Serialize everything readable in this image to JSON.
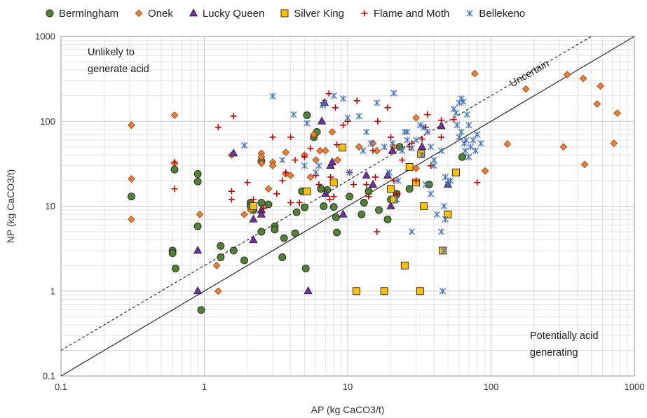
{
  "chart_data": {
    "type": "scatter",
    "xlabel": "AP (kg CaCO3/t)",
    "ylabel": "NP (kg CaCO3/t)",
    "xscale": "log",
    "yscale": "log",
    "xlim": [
      0.1,
      1000
    ],
    "ylim": [
      0.1,
      1000
    ],
    "x_ticks": [
      "0.1",
      "1",
      "10",
      "100",
      "1000"
    ],
    "y_ticks": [
      "0.1",
      "1",
      "10",
      "100",
      "1000"
    ],
    "grid": true,
    "legend_position": "top",
    "reference_lines": [
      {
        "label": "",
        "style": "solid",
        "ratio": 1
      },
      {
        "label": "Uncertain",
        "style": "dashed",
        "ratio": 2
      }
    ],
    "annotations": {
      "top_left": [
        "Unlikely to",
        "generate acid"
      ],
      "bottom_right": [
        "Potentially acid",
        "generating"
      ],
      "line_label": "Uncertain"
    },
    "series": [
      {
        "name": "Bermingham",
        "marker": "circle",
        "color": "#548235",
        "points": [
          [
            0.31,
            13
          ],
          [
            0.6,
            3
          ],
          [
            0.6,
            2.8
          ],
          [
            0.62,
            27
          ],
          [
            0.63,
            1.85
          ],
          [
            0.9,
            24
          ],
          [
            0.9,
            19.5
          ],
          [
            0.9,
            5.8
          ],
          [
            0.95,
            0.6
          ],
          [
            1.3,
            3.4
          ],
          [
            1.3,
            2.5
          ],
          [
            1.6,
            3
          ],
          [
            1.9,
            2.3
          ],
          [
            2.1,
            11
          ],
          [
            2.1,
            10
          ],
          [
            2.2,
            9
          ],
          [
            2.5,
            11
          ],
          [
            2.5,
            5
          ],
          [
            2.5,
            34
          ],
          [
            2.8,
            10.5
          ],
          [
            3.1,
            5.8
          ],
          [
            3.1,
            5.3
          ],
          [
            3.5,
            2.5
          ],
          [
            3.6,
            4.2
          ],
          [
            4.3,
            4.8
          ],
          [
            4.4,
            8.5
          ],
          [
            4.8,
            15
          ],
          [
            5,
            9.7
          ],
          [
            5.1,
            1.85
          ],
          [
            5.2,
            118
          ],
          [
            5.8,
            65
          ],
          [
            6.1,
            75
          ],
          [
            6.5,
            16
          ],
          [
            6.8,
            10
          ],
          [
            7.2,
            15.5
          ],
          [
            8,
            9.8
          ],
          [
            8.3,
            7.4
          ],
          [
            8.4,
            4.9
          ],
          [
            10.3,
            13
          ],
          [
            12.5,
            8
          ],
          [
            13,
            11
          ],
          [
            14,
            15
          ],
          [
            16.5,
            9
          ],
          [
            19,
            7
          ],
          [
            20,
            12
          ],
          [
            22,
            14
          ],
          [
            23,
            50
          ],
          [
            27,
            16
          ],
          [
            37,
            18
          ],
          [
            63,
            38
          ]
        ]
      },
      {
        "name": "Onek",
        "marker": "diamond",
        "color": "#ED7D31",
        "points": [
          [
            0.31,
            90
          ],
          [
            0.31,
            21
          ],
          [
            0.31,
            7
          ],
          [
            0.62,
            118
          ],
          [
            0.62,
            32
          ],
          [
            0.93,
            8
          ],
          [
            1.22,
            2
          ],
          [
            1.25,
            1
          ],
          [
            1.55,
            40
          ],
          [
            1.9,
            8
          ],
          [
            2.1,
            9
          ],
          [
            2.5,
            42
          ],
          [
            2.5,
            38
          ],
          [
            2.5,
            32
          ],
          [
            2.8,
            16
          ],
          [
            3,
            33
          ],
          [
            3,
            30
          ],
          [
            3.7,
            43
          ],
          [
            3.7,
            24
          ],
          [
            4,
            23
          ],
          [
            5,
            40
          ],
          [
            5.5,
            22
          ],
          [
            5.8,
            70
          ],
          [
            6,
            35
          ],
          [
            6.4,
            45
          ],
          [
            7,
            45
          ],
          [
            7.8,
            75
          ],
          [
            8.5,
            35
          ],
          [
            12,
            50
          ],
          [
            15,
            55
          ],
          [
            16,
            45
          ],
          [
            21,
            50
          ],
          [
            30,
            110
          ],
          [
            30,
            28
          ],
          [
            91,
            26
          ],
          [
            130,
            54
          ],
          [
            175,
            240
          ],
          [
            320,
            50
          ],
          [
            340,
            355
          ],
          [
            440,
            320
          ],
          [
            450,
            31
          ],
          [
            550,
            160
          ],
          [
            580,
            260
          ],
          [
            720,
            55
          ],
          [
            760,
            125
          ],
          [
            77,
            365
          ]
        ]
      },
      {
        "name": "Lucky Queen",
        "marker": "triangle",
        "color": "#7030A0",
        "points": [
          [
            0.9,
            3
          ],
          [
            0.9,
            1
          ],
          [
            1.6,
            42
          ],
          [
            2.2,
            7
          ],
          [
            2.2,
            4
          ],
          [
            2.5,
            9
          ],
          [
            2.5,
            8
          ],
          [
            5.3,
            1
          ],
          [
            6.6,
            100
          ],
          [
            6.9,
            165
          ],
          [
            7,
            14
          ],
          [
            7.6,
            30
          ],
          [
            7.8,
            33
          ],
          [
            9.3,
            8
          ],
          [
            13.5,
            23
          ],
          [
            15,
            18
          ],
          [
            19,
            23
          ],
          [
            20,
            10
          ],
          [
            20.5,
            45
          ],
          [
            33,
            50
          ],
          [
            45,
            88
          ],
          [
            50,
            18
          ]
        ]
      },
      {
        "name": "Silver King",
        "marker": "square",
        "color": "#FFC000",
        "points": [
          [
            2.2,
            10
          ],
          [
            5.2,
            15
          ],
          [
            8,
            19
          ],
          [
            9.2,
            49
          ],
          [
            11.5,
            1
          ],
          [
            18,
            1
          ],
          [
            20,
            16
          ],
          [
            21,
            12
          ],
          [
            25,
            2
          ],
          [
            27,
            29
          ],
          [
            30,
            19
          ],
          [
            32,
            1
          ],
          [
            32.5,
            41
          ],
          [
            34,
            10
          ],
          [
            46,
            3
          ],
          [
            50,
            8
          ],
          [
            57,
            25
          ]
        ]
      },
      {
        "name": "Flame and Moth",
        "marker": "plus",
        "color": "#C00000",
        "points": [
          [
            0.62,
            33
          ],
          [
            0.62,
            16
          ],
          [
            1.25,
            85
          ],
          [
            1.6,
            115
          ],
          [
            1.55,
            15
          ],
          [
            1.55,
            12
          ],
          [
            2,
            19
          ],
          [
            2.2,
            12
          ],
          [
            2.6,
            9.5
          ],
          [
            3,
            65
          ],
          [
            3.2,
            14
          ],
          [
            3.5,
            20
          ],
          [
            3.7,
            25
          ],
          [
            4,
            65
          ],
          [
            4,
            11
          ],
          [
            4.3,
            35
          ],
          [
            4.6,
            11
          ],
          [
            5,
            38
          ],
          [
            5.5,
            48
          ],
          [
            6,
            23
          ],
          [
            6.3,
            18
          ],
          [
            6.8,
            165
          ],
          [
            7.4,
            212
          ],
          [
            7.5,
            12
          ],
          [
            7.6,
            22
          ],
          [
            8,
            13
          ],
          [
            8.2,
            145
          ],
          [
            8.4,
            53
          ],
          [
            9.3,
            90
          ],
          [
            10,
            100
          ],
          [
            10.3,
            25
          ],
          [
            11,
            18
          ],
          [
            11.6,
            175
          ],
          [
            13.5,
            18
          ],
          [
            14,
            13
          ],
          [
            15,
            45
          ],
          [
            15.6,
            22
          ],
          [
            16.2,
            100
          ],
          [
            16,
            5
          ],
          [
            19,
            145
          ],
          [
            20,
            65
          ],
          [
            21,
            20
          ],
          [
            22,
            14
          ],
          [
            24,
            35
          ],
          [
            27,
            50
          ],
          [
            28,
            55
          ],
          [
            30,
            20
          ],
          [
            33,
            62
          ],
          [
            35,
            85
          ],
          [
            36,
            120
          ],
          [
            38,
            30
          ],
          [
            45,
            65
          ],
          [
            45,
            103
          ],
          [
            55,
            105
          ],
          [
            80,
            19
          ]
        ]
      },
      {
        "name": "Bellekeno",
        "marker": "asterisk",
        "color": "#4472C4",
        "points": [
          [
            1.9,
            52
          ],
          [
            3,
            198
          ],
          [
            3.5,
            35
          ],
          [
            4.2,
            120
          ],
          [
            5,
            30
          ],
          [
            5.2,
            95
          ],
          [
            6,
            25
          ],
          [
            6.3,
            30
          ],
          [
            6.7,
            155
          ],
          [
            6.9,
            165
          ],
          [
            8,
            200
          ],
          [
            9.3,
            185
          ],
          [
            10,
            110
          ],
          [
            10.3,
            25
          ],
          [
            12,
            115
          ],
          [
            12.8,
            45
          ],
          [
            13.5,
            75
          ],
          [
            14.5,
            55
          ],
          [
            16,
            165
          ],
          [
            18,
            50
          ],
          [
            19.5,
            25
          ],
          [
            20.5,
            55
          ],
          [
            21,
            215
          ],
          [
            22,
            12
          ],
          [
            22.5,
            20
          ],
          [
            25,
            75
          ],
          [
            26,
            75
          ],
          [
            28,
            5
          ],
          [
            30,
            60
          ],
          [
            32,
            90
          ],
          [
            34,
            85
          ],
          [
            35,
            18
          ],
          [
            36,
            75
          ],
          [
            38,
            14
          ],
          [
            40,
            35
          ],
          [
            40,
            30
          ],
          [
            42,
            8
          ],
          [
            45,
            5
          ],
          [
            46,
            1
          ],
          [
            47,
            3
          ],
          [
            47,
            10
          ],
          [
            48,
            7
          ],
          [
            48,
            22
          ],
          [
            50,
            18
          ],
          [
            52,
            20
          ],
          [
            55,
            140
          ],
          [
            57,
            125
          ],
          [
            60,
            165
          ],
          [
            62,
            185
          ],
          [
            64,
            170
          ],
          [
            65,
            55
          ],
          [
            66,
            45
          ],
          [
            67,
            60
          ],
          [
            68,
            120
          ],
          [
            70,
            38
          ],
          [
            72,
            50
          ],
          [
            75,
            60
          ],
          [
            78,
            45
          ],
          [
            80,
            70
          ],
          [
            85,
            55
          ],
          [
            60,
            65
          ],
          [
            58,
            90
          ],
          [
            62,
            75
          ],
          [
            70,
            90
          ],
          [
            45,
            45
          ],
          [
            38,
            50
          ],
          [
            33,
            40
          ],
          [
            28,
            48
          ],
          [
            26,
            60
          ],
          [
            24,
            45
          ]
        ]
      }
    ]
  }
}
